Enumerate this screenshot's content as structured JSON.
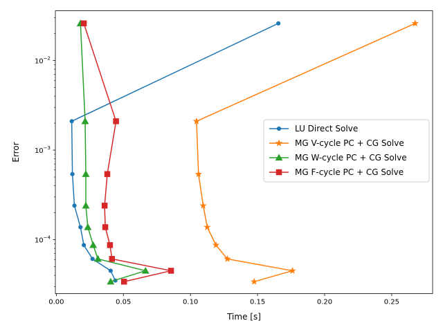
{
  "chart_data": {
    "type": "line",
    "title": "",
    "xlabel": "Time [s]",
    "ylabel": "Error",
    "xlim": [
      -0.0007,
      0.2805
    ],
    "ylim": [
      2.5e-05,
      0.036
    ],
    "yscale": "log",
    "grid": false,
    "legend_position": "center-right",
    "x_ticks": [
      {
        "value": 0.0,
        "label": "0.00"
      },
      {
        "value": 0.05,
        "label": "0.05"
      },
      {
        "value": 0.1,
        "label": "0.10"
      },
      {
        "value": 0.15,
        "label": "0.15"
      },
      {
        "value": 0.2,
        "label": "0.20"
      },
      {
        "value": 0.25,
        "label": "0.25"
      }
    ],
    "y_ticks": [
      {
        "value": 0.0001,
        "base": "10",
        "exp": "−4"
      },
      {
        "value": 0.001,
        "base": "10",
        "exp": "−3"
      },
      {
        "value": 0.01,
        "base": "10",
        "exp": "−2"
      }
    ],
    "y_minor_ticks": [
      3e-05,
      4e-05,
      5e-05,
      6e-05,
      7e-05,
      8e-05,
      9e-05,
      0.0002,
      0.0003,
      0.0004,
      0.0005,
      0.0006,
      0.0007,
      0.0008,
      0.0009,
      0.002,
      0.003,
      0.004,
      0.005,
      0.006,
      0.007,
      0.008,
      0.009,
      0.02,
      0.03
    ],
    "series": [
      {
        "name": "LU Direct Solve",
        "color": "#1f77b4",
        "marker": "circle",
        "x": [
          0.1655,
          0.0115,
          0.012,
          0.0135,
          0.018,
          0.0205,
          0.027,
          0.0405,
          0.044
        ],
        "y": [
          0.026,
          0.0021,
          0.00054,
          0.00024,
          0.000138,
          8.7e-05,
          6.1e-05,
          4.5e-05,
          3.5e-05
        ]
      },
      {
        "name": "MG V-cycle PC + CG Solve",
        "color": "#ff7f0e",
        "marker": "star",
        "x": [
          0.2675,
          0.1045,
          0.106,
          0.1095,
          0.1125,
          0.119,
          0.1275,
          0.176,
          0.1475
        ],
        "y": [
          0.026,
          0.0021,
          0.00054,
          0.00024,
          0.000138,
          8.7e-05,
          6.1e-05,
          4.5e-05,
          3.4e-05
        ]
      },
      {
        "name": "MG W-cycle PC + CG Solve",
        "color": "#2ca02c",
        "marker": "triangle",
        "x": [
          0.018,
          0.0215,
          0.022,
          0.022,
          0.0235,
          0.0275,
          0.031,
          0.0665,
          0.0405
        ],
        "y": [
          0.026,
          0.0021,
          0.00054,
          0.00024,
          0.000138,
          8.7e-05,
          6.1e-05,
          4.5e-05,
          3.4e-05
        ]
      },
      {
        "name": "MG F-cycle PC + CG Solve",
        "color": "#d62728",
        "marker": "square",
        "x": [
          0.0205,
          0.0445,
          0.038,
          0.036,
          0.0365,
          0.04,
          0.0415,
          0.0855,
          0.0505
        ],
        "y": [
          0.026,
          0.0021,
          0.00054,
          0.00024,
          0.000138,
          8.7e-05,
          6.1e-05,
          4.5e-05,
          3.4e-05
        ]
      }
    ]
  }
}
